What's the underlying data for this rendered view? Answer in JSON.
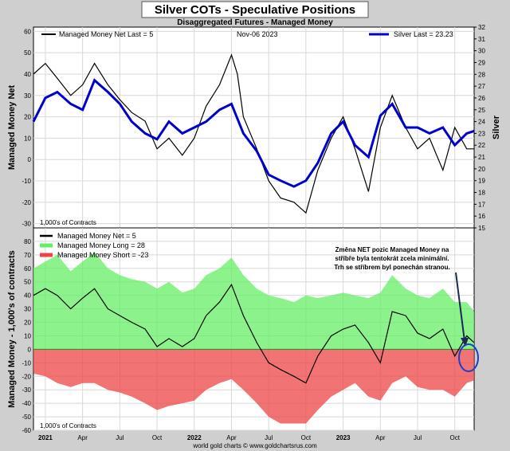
{
  "title": "Silver COTs - Speculative Positions",
  "subtitle": "Disaggregated Futures - Managed Money",
  "date": "Nov-06  2023",
  "footer": "world gold charts © www.goldchartsrus.com",
  "units_note": "1,000's of Contracts",
  "annotation": [
    "Změna NET pozic Managed Money na",
    "stříbře byla tentokrát zcela minimální.",
    "Trh se stříbrem byl ponechán stranou."
  ],
  "colors": {
    "net": "#000000",
    "silver": "#0000cc",
    "long": "#66ee66",
    "short": "#ee4444",
    "frame": "#000000",
    "annotation_circle": "#1a3fcc"
  },
  "chart_data": [
    {
      "type": "line",
      "name": "top-panel",
      "legend_left": "Managed Money Net   Last = 5",
      "legend_right": "Silver Last = 23.23",
      "ylabel_left": "Managed Money Net",
      "ylabel_right": "Silver",
      "ylim_left": [
        -32,
        62
      ],
      "ylim_right": [
        15,
        32
      ],
      "yticks_left": [
        60,
        50,
        40,
        30,
        20,
        10,
        0,
        -10,
        -20,
        -30
      ],
      "yticks_right": [
        32,
        31,
        30,
        29,
        28,
        27,
        26,
        25,
        24,
        23,
        22,
        21,
        20,
        19,
        18,
        17,
        16,
        15
      ],
      "x_range": [
        2020.92,
        2023.88
      ],
      "series": [
        {
          "name": "Managed Money Net",
          "axis": "left",
          "x": [
            2020.92,
            2021.0,
            2021.08,
            2021.17,
            2021.25,
            2021.33,
            2021.42,
            2021.5,
            2021.58,
            2021.67,
            2021.75,
            2021.83,
            2021.92,
            2022.0,
            2022.08,
            2022.17,
            2022.25,
            2022.29,
            2022.33,
            2022.42,
            2022.5,
            2022.58,
            2022.67,
            2022.75,
            2022.83,
            2022.92,
            2023.0,
            2023.08,
            2023.17,
            2023.25,
            2023.33,
            2023.42,
            2023.5,
            2023.58,
            2023.67,
            2023.75,
            2023.83,
            2023.88
          ],
          "y": [
            40,
            45,
            38,
            30,
            35,
            45,
            35,
            28,
            22,
            18,
            5,
            10,
            2,
            10,
            25,
            35,
            49,
            40,
            20,
            5,
            -10,
            -18,
            -20,
            -25,
            -5,
            10,
            20,
            5,
            -15,
            15,
            30,
            15,
            5,
            10,
            -5,
            15,
            5,
            5
          ]
        },
        {
          "name": "Silver",
          "axis": "right",
          "x": [
            2020.92,
            2021.0,
            2021.08,
            2021.17,
            2021.25,
            2021.33,
            2021.42,
            2021.5,
            2021.58,
            2021.67,
            2021.75,
            2021.83,
            2021.92,
            2022.0,
            2022.08,
            2022.17,
            2022.25,
            2022.33,
            2022.42,
            2022.5,
            2022.58,
            2022.67,
            2022.75,
            2022.83,
            2022.92,
            2023.0,
            2023.08,
            2023.17,
            2023.25,
            2023.33,
            2023.42,
            2023.5,
            2023.58,
            2023.67,
            2023.75,
            2023.83,
            2023.88
          ],
          "y": [
            24,
            26,
            26.5,
            25.5,
            25,
            27.5,
            26.5,
            25.5,
            24,
            23,
            22.5,
            24,
            23,
            23.5,
            24,
            25,
            25.5,
            23,
            21.5,
            19.5,
            19,
            18.5,
            19,
            20.5,
            23,
            24,
            22,
            21,
            24.5,
            25.5,
            23.5,
            23.5,
            23,
            23.5,
            22,
            23,
            23.2
          ]
        }
      ]
    },
    {
      "type": "area",
      "name": "bottom-panel",
      "legend": [
        "Managed Money Net      = 5",
        "Managed Money Long    = 28",
        "Managed Money Short  = -23"
      ],
      "ylabel": "Managed Money - 1,000's of contracts",
      "ylim": [
        -60,
        90
      ],
      "yticks": [
        80,
        70,
        60,
        50,
        40,
        30,
        20,
        10,
        0,
        -10,
        -20,
        -30,
        -40,
        -50,
        -60
      ],
      "x_range": [
        2020.92,
        2023.88
      ],
      "xtick_labels": [
        "2021",
        "Apr",
        "Jul",
        "Oct",
        "2022",
        "Apr",
        "Jul",
        "Oct",
        "2023",
        "Apr",
        "Jul",
        "Oct"
      ],
      "xtick_values": [
        2021.0,
        2021.25,
        2021.5,
        2021.75,
        2022.0,
        2022.25,
        2022.5,
        2022.75,
        2023.0,
        2023.25,
        2023.5,
        2023.75
      ],
      "x": [
        2020.92,
        2021.0,
        2021.08,
        2021.17,
        2021.25,
        2021.33,
        2021.42,
        2021.5,
        2021.58,
        2021.67,
        2021.75,
        2021.83,
        2021.92,
        2022.0,
        2022.08,
        2022.17,
        2022.25,
        2022.33,
        2022.42,
        2022.5,
        2022.58,
        2022.67,
        2022.75,
        2022.83,
        2022.92,
        2023.0,
        2023.08,
        2023.17,
        2023.25,
        2023.33,
        2023.42,
        2023.5,
        2023.58,
        2023.67,
        2023.75,
        2023.83,
        2023.88
      ],
      "series": [
        {
          "name": "Managed Money Long",
          "values": [
            60,
            65,
            70,
            58,
            65,
            72,
            60,
            55,
            52,
            50,
            45,
            50,
            42,
            45,
            55,
            60,
            68,
            55,
            45,
            40,
            38,
            35,
            40,
            38,
            40,
            42,
            40,
            38,
            42,
            55,
            45,
            40,
            38,
            45,
            35,
            35,
            28
          ]
        },
        {
          "name": "Managed Money Short",
          "values": [
            -18,
            -20,
            -25,
            -28,
            -25,
            -25,
            -30,
            -32,
            -35,
            -40,
            -45,
            -42,
            -40,
            -38,
            -30,
            -25,
            -22,
            -30,
            -40,
            -50,
            -55,
            -55,
            -55,
            -45,
            -35,
            -30,
            -25,
            -35,
            -38,
            -25,
            -20,
            -28,
            -30,
            -30,
            -35,
            -25,
            -23
          ]
        },
        {
          "name": "Managed Money Net",
          "values": [
            40,
            45,
            40,
            30,
            38,
            45,
            30,
            25,
            20,
            15,
            2,
            8,
            2,
            8,
            25,
            35,
            48,
            25,
            5,
            -10,
            -15,
            -20,
            -25,
            -5,
            10,
            15,
            18,
            5,
            -10,
            28,
            25,
            12,
            8,
            15,
            -5,
            10,
            5
          ]
        }
      ]
    }
  ]
}
